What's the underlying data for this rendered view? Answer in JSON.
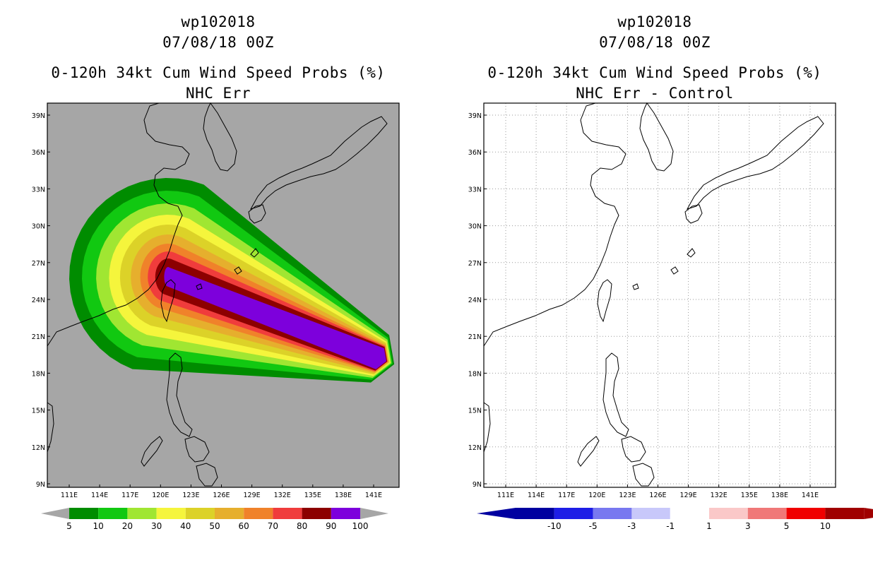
{
  "left_panel": {
    "storm_id": "wp102018",
    "datetime": "07/08/18 00Z",
    "product": "0-120h 34kt Cum Wind Speed Probs (%)",
    "subtitle": "NHC Err",
    "background_color": "#a6a6a6",
    "colorbar": {
      "labels": [
        "5",
        "10",
        "20",
        "30",
        "40",
        "50",
        "60",
        "70",
        "80",
        "90",
        "100"
      ],
      "colors": [
        "#008c00",
        "#11c811",
        "#a0e632",
        "#f5f53c",
        "#dcd228",
        "#e6af2d",
        "#f0822a",
        "#f03c3c",
        "#8c0000",
        "#7d00dc"
      ],
      "extension_color": "#a6a6a6"
    }
  },
  "right_panel": {
    "storm_id": "wp102018",
    "datetime": "07/08/18 00Z",
    "product": "0-120h 34kt Cum Wind Speed Probs (%)",
    "subtitle": "NHC Err - Control",
    "background_color": "#ffffff",
    "colorbar": {
      "labels": [
        "-10",
        "-5",
        "-3",
        "-1",
        "1",
        "3",
        "5",
        "10"
      ],
      "colors": [
        "#0000a0",
        "#1e1ee6",
        "#7878f0",
        "#c8c8fa",
        "#ffffff",
        "#fac8c8",
        "#f07878",
        "#f00000",
        "#a00000"
      ],
      "end_left_color": "#0000a0",
      "end_right_color": "#a00000"
    }
  },
  "map_axes": {
    "lon_labels": [
      "111E",
      "114E",
      "117E",
      "120E",
      "123E",
      "126E",
      "129E",
      "132E",
      "135E",
      "138E",
      "141E"
    ],
    "lat_labels": [
      "39N",
      "36N",
      "33N",
      "30N",
      "27N",
      "24N",
      "21N",
      "18N",
      "15N",
      "12N",
      "9N"
    ]
  }
}
